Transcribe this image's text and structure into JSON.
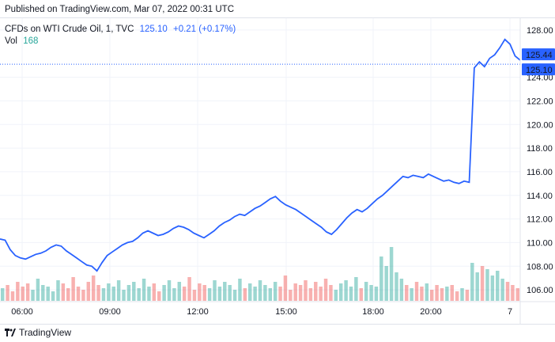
{
  "header": {
    "published": "Published on TradingView.com, Mar 07, 2022 00:31 UTC"
  },
  "legend": {
    "symbol": "CFDs on WTI Crude Oil, 1, TVC",
    "last": "125.10",
    "change": "+0.21 (+0.17%)",
    "vol_label": "Vol",
    "vol_value": "168"
  },
  "footer": {
    "brand": "TradingView",
    "logo_icon": "tradingview-logo-icon"
  },
  "colors": {
    "line": "#2962ff",
    "vol_up": "#26a69a",
    "vol_down": "#ef5350",
    "last_label_bg": "#2962ff",
    "grid": "#f0f3fa"
  },
  "chart_data": {
    "type": "line",
    "y_ticks": [
      "106.00",
      "108.00",
      "110.00",
      "112.00",
      "114.00",
      "116.00",
      "118.00",
      "120.00",
      "122.00",
      "124.00",
      "128.00"
    ],
    "x_ticks": [
      "06:00",
      "09:00",
      "12:00",
      "15:00",
      "18:00",
      "20:00",
      "7"
    ],
    "ylim": [
      105.0,
      129.0
    ],
    "price_labels": [
      "125.44",
      "125.10"
    ],
    "series": [
      {
        "values": [
          110.3,
          110.2,
          109.4,
          108.9,
          108.7,
          108.6,
          108.8,
          109.0,
          109.1,
          109.3,
          109.6,
          109.8,
          109.7,
          109.3,
          109.0,
          108.7,
          108.4,
          108.1,
          108.0,
          107.6,
          108.3,
          108.9,
          109.2,
          109.5,
          109.8,
          110.0,
          110.1,
          110.4,
          110.8,
          111.0,
          110.8,
          110.6,
          110.7,
          110.9,
          111.2,
          111.4,
          111.3,
          111.1,
          110.8,
          110.6,
          110.4,
          110.7,
          111.0,
          111.4,
          111.7,
          111.9,
          112.2,
          112.4,
          112.3,
          112.6,
          112.9,
          113.1,
          113.4,
          113.7,
          113.9,
          113.5,
          113.2,
          113.0,
          112.8,
          112.5,
          112.2,
          111.9,
          111.6,
          111.3,
          110.9,
          110.7,
          111.1,
          111.6,
          112.1,
          112.5,
          112.8,
          112.6,
          112.9,
          113.3,
          113.7,
          114.0,
          114.4,
          114.8,
          115.2,
          115.6,
          115.5,
          115.7,
          115.6,
          115.5,
          115.8,
          115.6,
          115.4,
          115.2,
          115.3,
          115.1,
          115.0,
          115.2,
          115.1,
          124.8,
          125.3,
          124.9,
          125.6,
          125.9,
          126.5,
          127.2,
          126.8,
          125.8,
          125.44
        ]
      }
    ],
    "volume": [
      8,
      10,
      6,
      12,
      9,
      11,
      7,
      14,
      10,
      9,
      6,
      13,
      11,
      8,
      15,
      9,
      7,
      12,
      16,
      10,
      8,
      11,
      9,
      13,
      7,
      10,
      12,
      8,
      14,
      9,
      11,
      6,
      10,
      13,
      8,
      12,
      9,
      15,
      7,
      11,
      10,
      8,
      13,
      9,
      12,
      10,
      7,
      14,
      8,
      11,
      9,
      13,
      10,
      8,
      12,
      9,
      16,
      7,
      11,
      10,
      13,
      8,
      12,
      9,
      14,
      10,
      7,
      11,
      13,
      9,
      15,
      8,
      12,
      10,
      9,
      28,
      22,
      34,
      18,
      14,
      10,
      8,
      12,
      9,
      11,
      7,
      10,
      8,
      9,
      10,
      6,
      8,
      7,
      24,
      18,
      22,
      20,
      16,
      19,
      14,
      12,
      10,
      8
    ]
  }
}
